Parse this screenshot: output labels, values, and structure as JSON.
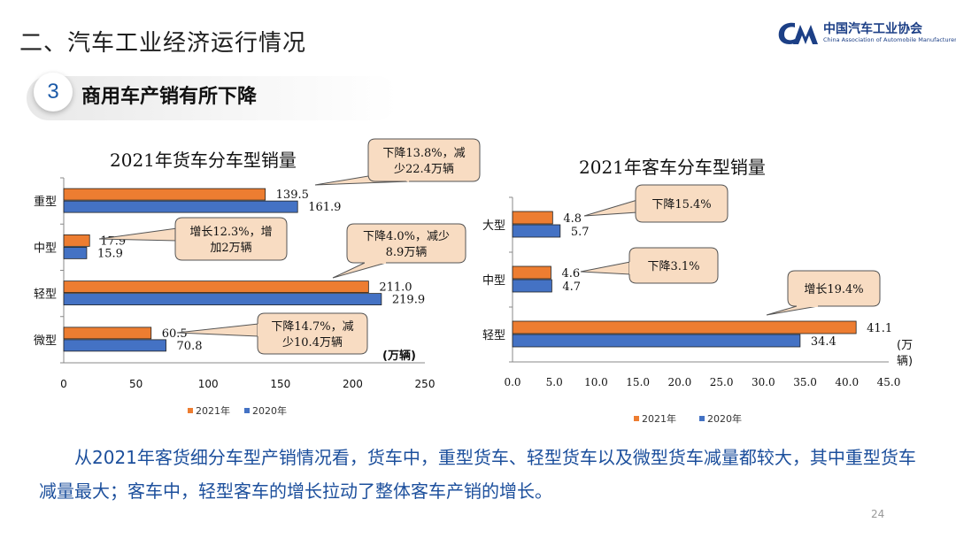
{
  "header": {
    "title": "二、汽车工业经济运行情况",
    "logo_cn": "中国汽车工业协会",
    "logo_en": "China Association of Automobile Manufacturers"
  },
  "section": {
    "number": "3",
    "title": "商用车产销有所下降"
  },
  "summary_text": "从2021年客货细分车型产销情况看，货车中，重型货车、轻型货车以及微型货车减量都较大，其中重型货车减量最大；客车中，轻型客车的增长拉动了整体客车产销的增长。",
  "page_number": "24",
  "colors": {
    "series_2021": "#ed7d31",
    "series_2020": "#4472c4",
    "callout_fill": "#f8dcc2",
    "text_blue": "#1c4f9c"
  },
  "chart_data": [
    {
      "type": "bar",
      "orientation": "horizontal",
      "title": "2021年货车分车型销量",
      "categories": [
        "重型",
        "中型",
        "轻型",
        "微型"
      ],
      "series": [
        {
          "name": "2021年",
          "values": [
            139.5,
            17.9,
            211.0,
            60.5
          ]
        },
        {
          "name": "2020年",
          "values": [
            161.9,
            15.9,
            219.9,
            70.8
          ]
        }
      ],
      "xlim": [
        0,
        250
      ],
      "xticks": [
        "0",
        "50",
        "100",
        "150",
        "200",
        "250"
      ],
      "unit_label": "(万辆)",
      "legend_position": "bottom",
      "grid": false,
      "annotations": [
        {
          "category": "重型",
          "lines": [
            "下降13.8%，减",
            "少22.4万辆"
          ]
        },
        {
          "category": "中型",
          "lines": [
            "增长12.3%，增",
            "加2万辆"
          ]
        },
        {
          "category": "轻型",
          "lines": [
            "下降4.0%，减少",
            "8.9万辆"
          ]
        },
        {
          "category": "微型",
          "lines": [
            "下降14.7%，减",
            "少10.4万辆"
          ]
        }
      ]
    },
    {
      "type": "bar",
      "orientation": "horizontal",
      "title": "2021年客车分车型销量",
      "categories": [
        "大型",
        "中型",
        "轻型"
      ],
      "series": [
        {
          "name": "2021年",
          "values": [
            4.8,
            4.6,
            41.1
          ]
        },
        {
          "name": "2020年",
          "values": [
            5.7,
            4.7,
            34.4
          ]
        }
      ],
      "xlim": [
        0,
        45
      ],
      "xticks": [
        "0.0",
        "5.0",
        "10.0",
        "15.0",
        "20.0",
        "25.0",
        "30.0",
        "35.0",
        "40.0",
        "45.0"
      ],
      "unit_label": [
        "(万",
        "辆)"
      ],
      "legend_position": "bottom",
      "grid": false,
      "annotations": [
        {
          "category": "大型",
          "lines": [
            "下降15.4%"
          ]
        },
        {
          "category": "中型",
          "lines": [
            "下降3.1%"
          ]
        },
        {
          "category": "轻型",
          "lines": [
            "增长19.4%"
          ]
        }
      ]
    }
  ]
}
